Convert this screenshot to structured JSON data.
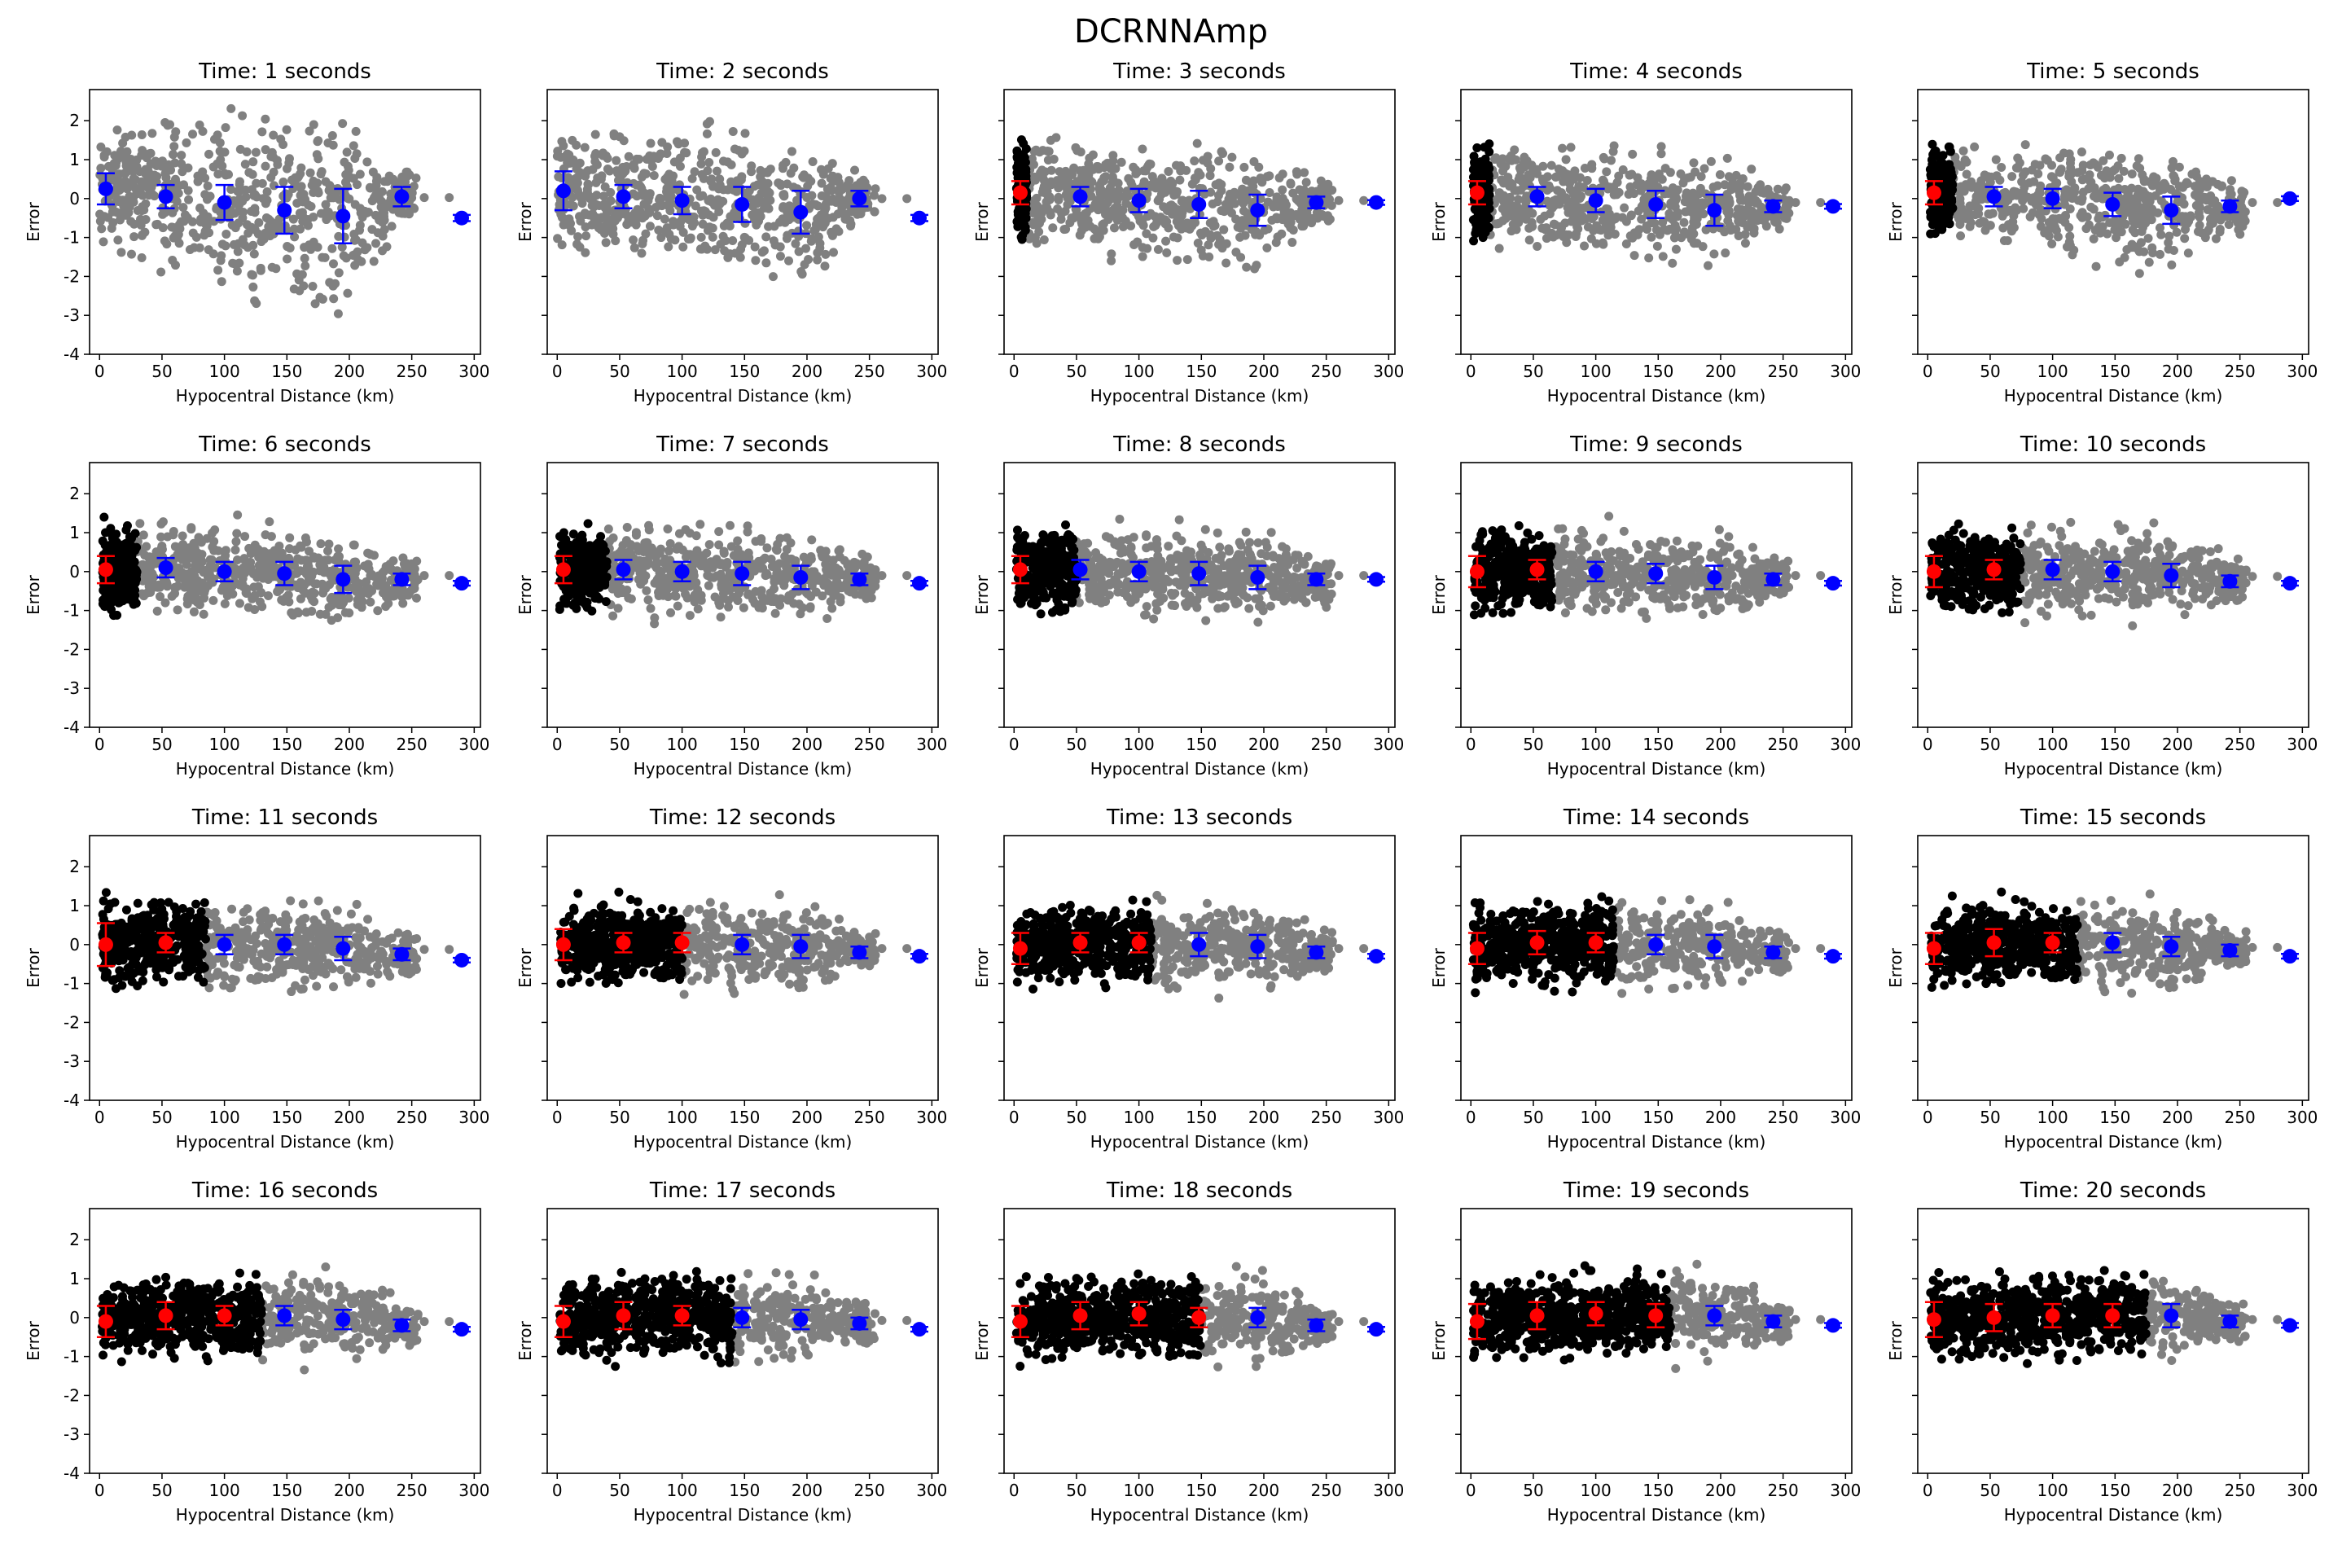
{
  "figure": {
    "suptitle": "DCRNNAmp",
    "colors": {
      "far_points": "#808080",
      "near_points": "#000000",
      "far_mean": "#0000ff",
      "near_mean": "#ff0000",
      "axes": "#000000",
      "background": "#ffffff"
    }
  },
  "chart_data": {
    "type": "scatter",
    "layout": {
      "rows": 4,
      "cols": 5
    },
    "shared_axes": {
      "xlabel": "Hypocentral Distance (km)",
      "ylabel": "Error",
      "xlim": [
        -8,
        305
      ],
      "ylim": [
        -4,
        2.8
      ],
      "xticks": [
        0,
        50,
        100,
        150,
        200,
        250,
        300
      ],
      "yticks": [
        -4,
        -3,
        -2,
        -1,
        0,
        1,
        2
      ],
      "grid": false,
      "ylabels_on_first_column_only": true
    },
    "distance_bins_km": [
      5,
      53,
      100,
      148,
      195,
      242,
      290
    ],
    "scatter_envelope": {
      "x_range": [
        0,
        255
      ],
      "tail_points_x": [
        260,
        280
      ]
    },
    "panels": [
      {
        "title": "Time: 1 seconds",
        "time_s": 1,
        "near_extent_km": 0,
        "mean": [
          0.25,
          0.05,
          -0.1,
          -0.3,
          -0.45,
          0.05,
          -0.5
        ],
        "err": [
          0.4,
          0.3,
          0.45,
          0.6,
          0.7,
          0.25,
          0.08
        ],
        "spread": [
          1.2,
          1.5,
          1.7,
          1.8,
          1.9,
          0.6
        ]
      },
      {
        "title": "Time: 2 seconds",
        "time_s": 2,
        "near_extent_km": 0,
        "mean": [
          0.2,
          0.05,
          -0.05,
          -0.15,
          -0.35,
          0.0,
          -0.5
        ],
        "err": [
          0.5,
          0.3,
          0.35,
          0.45,
          0.55,
          0.2,
          0.08
        ],
        "spread": [
          1.3,
          1.3,
          1.4,
          1.5,
          1.6,
          0.6
        ]
      },
      {
        "title": "Time: 3 seconds",
        "time_s": 3,
        "near_extent_km": 10,
        "mean": [
          0.15,
          0.05,
          -0.05,
          -0.15,
          -0.3,
          -0.1,
          -0.1
        ],
        "err": [
          0.3,
          0.25,
          0.3,
          0.35,
          0.4,
          0.15,
          0.06
        ],
        "spread": [
          1.1,
          1.0,
          1.1,
          1.2,
          1.3,
          0.5
        ]
      },
      {
        "title": "Time: 4 seconds",
        "time_s": 4,
        "near_extent_km": 15,
        "mean": [
          0.15,
          0.05,
          -0.05,
          -0.15,
          -0.3,
          -0.2,
          -0.2
        ],
        "err": [
          0.3,
          0.25,
          0.3,
          0.35,
          0.4,
          0.15,
          0.06
        ],
        "spread": [
          1.1,
          1.0,
          1.0,
          1.1,
          1.2,
          0.5
        ]
      },
      {
        "title": "Time: 5 seconds",
        "time_s": 5,
        "near_extent_km": 20,
        "mean": [
          0.15,
          0.05,
          0.0,
          -0.15,
          -0.3,
          -0.2,
          0.0
        ],
        "err": [
          0.3,
          0.25,
          0.25,
          0.3,
          0.35,
          0.15,
          0.06
        ],
        "spread": [
          1.0,
          1.0,
          1.0,
          1.1,
          1.1,
          0.5
        ]
      },
      {
        "title": "Time: 6 seconds",
        "time_s": 6,
        "near_extent_km": 30,
        "mean": [
          0.05,
          0.1,
          0.0,
          -0.05,
          -0.2,
          -0.2,
          -0.3
        ],
        "err": [
          0.35,
          0.25,
          0.25,
          0.3,
          0.35,
          0.15,
          0.06
        ],
        "spread": [
          1.0,
          0.9,
          0.9,
          1.0,
          1.0,
          0.5
        ]
      },
      {
        "title": "Time: 7 seconds",
        "time_s": 7,
        "near_extent_km": 40,
        "mean": [
          0.05,
          0.05,
          0.0,
          -0.05,
          -0.15,
          -0.2,
          -0.3
        ],
        "err": [
          0.35,
          0.25,
          0.25,
          0.3,
          0.3,
          0.15,
          0.06
        ],
        "spread": [
          1.0,
          0.9,
          0.9,
          0.9,
          1.0,
          0.5
        ]
      },
      {
        "title": "Time: 8 seconds",
        "time_s": 8,
        "near_extent_km": 50,
        "mean": [
          0.05,
          0.05,
          0.0,
          -0.05,
          -0.15,
          -0.2,
          -0.2
        ],
        "err": [
          0.35,
          0.25,
          0.25,
          0.3,
          0.3,
          0.15,
          0.06
        ],
        "spread": [
          1.0,
          0.9,
          0.9,
          0.9,
          0.9,
          0.5
        ]
      },
      {
        "title": "Time: 9 seconds",
        "time_s": 9,
        "near_extent_km": 65,
        "mean": [
          0.0,
          0.05,
          0.0,
          -0.05,
          -0.15,
          -0.2,
          -0.3
        ],
        "err": [
          0.4,
          0.25,
          0.25,
          0.25,
          0.3,
          0.15,
          0.06
        ],
        "spread": [
          1.0,
          0.9,
          0.9,
          0.9,
          0.9,
          0.5
        ]
      },
      {
        "title": "Time: 10 seconds",
        "time_s": 10,
        "near_extent_km": 75,
        "mean": [
          0.0,
          0.05,
          0.05,
          0.0,
          -0.1,
          -0.25,
          -0.3
        ],
        "err": [
          0.4,
          0.25,
          0.25,
          0.25,
          0.3,
          0.15,
          0.06
        ],
        "spread": [
          0.9,
          0.9,
          0.9,
          0.9,
          0.9,
          0.5
        ]
      },
      {
        "title": "Time: 11 seconds",
        "time_s": 11,
        "near_extent_km": 85,
        "mean": [
          0.0,
          0.05,
          0.0,
          0.0,
          -0.1,
          -0.25,
          -0.4
        ],
        "err": [
          0.55,
          0.25,
          0.25,
          0.25,
          0.3,
          0.15,
          0.06
        ],
        "spread": [
          1.0,
          0.9,
          0.9,
          0.9,
          0.9,
          0.5
        ]
      },
      {
        "title": "Time: 12 seconds",
        "time_s": 12,
        "near_extent_km": 100,
        "mean": [
          0.0,
          0.05,
          0.05,
          0.0,
          -0.05,
          -0.2,
          -0.3
        ],
        "err": [
          0.4,
          0.25,
          0.25,
          0.25,
          0.3,
          0.15,
          0.06
        ],
        "spread": [
          0.9,
          0.9,
          0.9,
          0.9,
          0.9,
          0.5
        ]
      },
      {
        "title": "Time: 13 seconds",
        "time_s": 13,
        "near_extent_km": 110,
        "mean": [
          -0.1,
          0.05,
          0.05,
          0.0,
          -0.05,
          -0.2,
          -0.3
        ],
        "err": [
          0.4,
          0.25,
          0.25,
          0.3,
          0.3,
          0.15,
          0.06
        ],
        "spread": [
          0.9,
          0.9,
          0.9,
          0.9,
          0.9,
          0.5
        ]
      },
      {
        "title": "Time: 14 seconds",
        "time_s": 14,
        "near_extent_km": 115,
        "mean": [
          -0.1,
          0.05,
          0.05,
          0.0,
          -0.05,
          -0.2,
          -0.3
        ],
        "err": [
          0.4,
          0.3,
          0.25,
          0.25,
          0.3,
          0.15,
          0.06
        ],
        "spread": [
          0.9,
          0.9,
          0.9,
          0.9,
          0.9,
          0.5
        ]
      },
      {
        "title": "Time: 15 seconds",
        "time_s": 15,
        "near_extent_km": 120,
        "mean": [
          -0.1,
          0.05,
          0.05,
          0.05,
          -0.05,
          -0.15,
          -0.3
        ],
        "err": [
          0.4,
          0.35,
          0.25,
          0.25,
          0.25,
          0.15,
          0.06
        ],
        "spread": [
          0.9,
          0.9,
          0.9,
          0.9,
          0.9,
          0.5
        ]
      },
      {
        "title": "Time: 16 seconds",
        "time_s": 16,
        "near_extent_km": 130,
        "mean": [
          -0.1,
          0.05,
          0.05,
          0.05,
          -0.05,
          -0.2,
          -0.3
        ],
        "err": [
          0.4,
          0.35,
          0.25,
          0.25,
          0.25,
          0.15,
          0.06
        ],
        "spread": [
          0.9,
          0.9,
          0.9,
          0.9,
          0.9,
          0.5
        ]
      },
      {
        "title": "Time: 17 seconds",
        "time_s": 17,
        "near_extent_km": 140,
        "mean": [
          -0.1,
          0.05,
          0.05,
          0.0,
          -0.05,
          -0.15,
          -0.3
        ],
        "err": [
          0.4,
          0.35,
          0.25,
          0.25,
          0.25,
          0.15,
          0.06
        ],
        "spread": [
          0.9,
          0.9,
          0.9,
          0.9,
          0.9,
          0.5
        ]
      },
      {
        "title": "Time: 18 seconds",
        "time_s": 18,
        "near_extent_km": 150,
        "mean": [
          -0.1,
          0.05,
          0.1,
          0.0,
          0.0,
          -0.2,
          -0.3
        ],
        "err": [
          0.4,
          0.35,
          0.3,
          0.25,
          0.25,
          0.15,
          0.06
        ],
        "spread": [
          0.9,
          0.9,
          0.9,
          0.9,
          0.9,
          0.5
        ]
      },
      {
        "title": "Time: 19 seconds",
        "time_s": 19,
        "near_extent_km": 160,
        "mean": [
          -0.1,
          0.05,
          0.1,
          0.05,
          0.05,
          -0.1,
          -0.2
        ],
        "err": [
          0.45,
          0.35,
          0.3,
          0.3,
          0.25,
          0.15,
          0.06
        ],
        "spread": [
          0.9,
          0.9,
          0.9,
          0.9,
          0.9,
          0.5
        ]
      },
      {
        "title": "Time: 20 seconds",
        "time_s": 20,
        "near_extent_km": 175,
        "mean": [
          -0.05,
          0.0,
          0.05,
          0.05,
          0.05,
          -0.1,
          -0.2
        ],
        "err": [
          0.45,
          0.35,
          0.3,
          0.3,
          0.3,
          0.15,
          0.06
        ],
        "spread": [
          0.9,
          0.9,
          0.9,
          0.9,
          0.9,
          0.5
        ]
      }
    ]
  }
}
